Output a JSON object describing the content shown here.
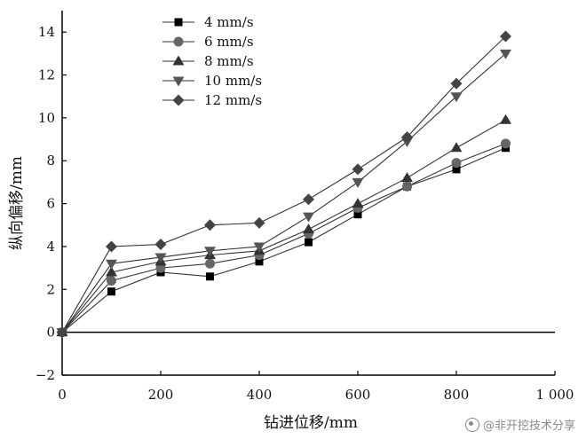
{
  "chart_data": {
    "type": "line",
    "title": "",
    "xlabel": "钻进位移/mm",
    "ylabel": "纵向偏移/mm",
    "xlim": [
      0,
      1000
    ],
    "ylim": [
      -2,
      15
    ],
    "x_ticks": [
      0,
      200,
      400,
      600,
      800,
      1000
    ],
    "x_tick_labels": [
      "0",
      "200",
      "400",
      "600",
      "800",
      "1 000"
    ],
    "y_ticks": [
      -2,
      0,
      2,
      4,
      6,
      8,
      10,
      12,
      14
    ],
    "y_tick_labels": [
      "−2",
      "0",
      "2",
      "4",
      "6",
      "8",
      "10",
      "12",
      "14"
    ],
    "grid": false,
    "legend_position": "top-left",
    "x": [
      0,
      100,
      200,
      300,
      400,
      500,
      600,
      700,
      800,
      900
    ],
    "series": [
      {
        "name": "4 mm/s",
        "marker": "square",
        "color": "#000000",
        "values": [
          0,
          1.9,
          2.8,
          2.6,
          3.3,
          4.2,
          5.5,
          6.8,
          7.6,
          8.6
        ]
      },
      {
        "name": "6 mm/s",
        "marker": "circle",
        "color": "#666666",
        "values": [
          0,
          2.4,
          3.0,
          3.2,
          3.6,
          4.6,
          5.8,
          6.8,
          7.9,
          8.8
        ]
      },
      {
        "name": "8 mm/s",
        "marker": "triangle-up",
        "color": "#333333",
        "values": [
          0,
          2.8,
          3.3,
          3.6,
          3.8,
          4.8,
          6.0,
          7.2,
          8.6,
          9.9
        ]
      },
      {
        "name": "10 mm/s",
        "marker": "triangle-down",
        "color": "#555555",
        "values": [
          0,
          3.2,
          3.5,
          3.8,
          4.0,
          5.4,
          7.0,
          8.9,
          11.0,
          13.0
        ]
      },
      {
        "name": "12 mm/s",
        "marker": "diamond",
        "color": "#444444",
        "values": [
          0,
          4.0,
          4.1,
          5.0,
          5.1,
          6.2,
          7.6,
          9.1,
          11.6,
          13.8
        ]
      }
    ]
  },
  "watermark": {
    "text": "@非开挖技术分享",
    "icon": "weibo-style-icon"
  }
}
